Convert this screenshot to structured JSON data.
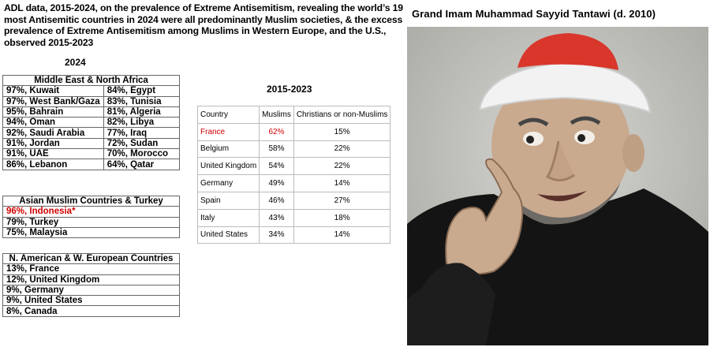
{
  "headline": "ADL data, 2015-2024, on the prevalence of Extreme Antisemitism, revealing the world’s 19 most Antisemitic countries in 2024 were all predominantly Muslim societies, & the excess prevalence of Extreme Antisemitism among Muslims in Western Europe, and the U.S., observed 2015-2023",
  "year_2024_label": "2024",
  "mena": {
    "header": "Middle East & North Africa",
    "rows": [
      [
        "97%, Kuwait",
        "84%, Egypt"
      ],
      [
        "97%, West Bank/Gaza",
        "83%, Tunisia"
      ],
      [
        "95%, Bahrain",
        "81%, Algeria"
      ],
      [
        "94%, Oman",
        "82%, Libya"
      ],
      [
        "92%, Saudi Arabia",
        "77%, Iraq"
      ],
      [
        "91%, Jordan",
        "72%, Sudan"
      ],
      [
        "91%, UAE",
        "70%, Morocco"
      ],
      [
        "86%, Lebanon",
        "64%, Qatar"
      ]
    ]
  },
  "asia": {
    "header": "Asian Muslim Countries & Turkey",
    "rows": [
      "96%, Indonesia*",
      "79%, Turkey",
      "75%, Malaysia"
    ],
    "highlight_color": "#d00000"
  },
  "west": {
    "header": "N. American & W. European Countries",
    "rows": [
      "13%, France",
      "12%, United Kingdom",
      "9%, Germany",
      "9%, United States",
      "8%, Canada"
    ]
  },
  "range_title": "2015-2023",
  "comparison": {
    "headers": [
      "Country",
      "Muslims",
      "Christians or non-Muslims"
    ],
    "rows": [
      {
        "country": "France",
        "muslims": "62%",
        "others": "15%"
      },
      {
        "country": "Belgium",
        "muslims": "58%",
        "others": "22%"
      },
      {
        "country": "United Kingdom",
        "muslims": "54%",
        "others": "22%"
      },
      {
        "country": "Germany",
        "muslims": "49%",
        "others": "14%"
      },
      {
        "country": "Spain",
        "muslims": "46%",
        "others": "27%"
      },
      {
        "country": "Italy",
        "muslims": "43%",
        "others": "18%"
      },
      {
        "country": "United States",
        "muslims": "34%",
        "others": "14%"
      }
    ]
  },
  "portrait": {
    "caption": "Grand Imam Muhammad Sayyid Tantawi (d. 2010)",
    "cap_color": "#d9372b",
    "turban_color": "#f2f2f2",
    "robe_color": "#141414",
    "skin_color": "#c9aa8f"
  }
}
